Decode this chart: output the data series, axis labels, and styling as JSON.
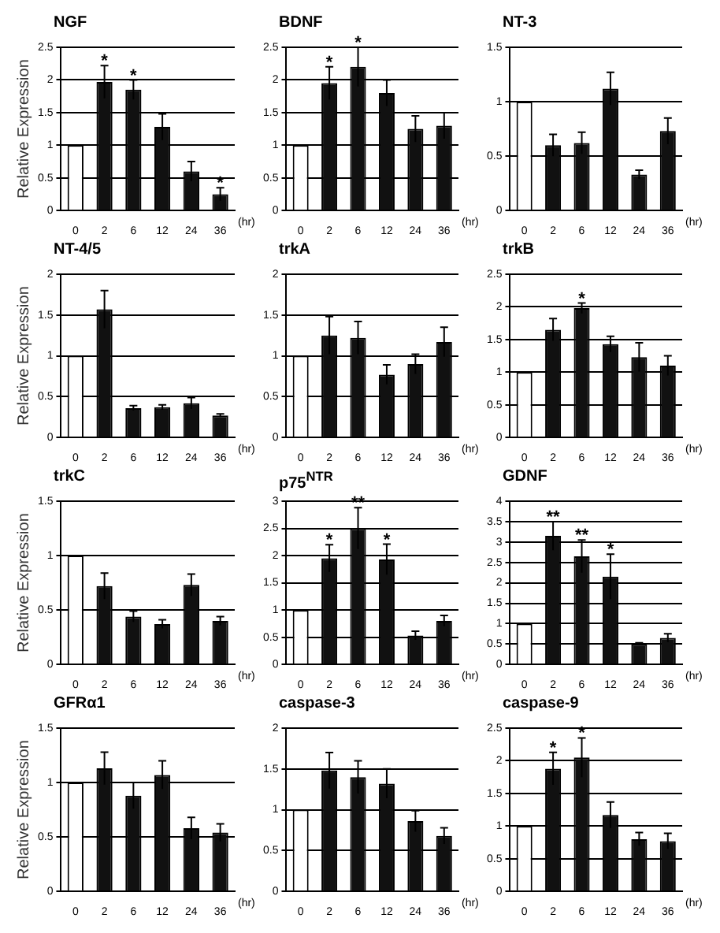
{
  "chart_data": [
    {
      "type": "bar",
      "title": "NGF",
      "ylabel": "Relative Expression",
      "xlabel": "(hr)",
      "categories": [
        "0",
        "2",
        "6",
        "12",
        "24",
        "36"
      ],
      "values": [
        1,
        1.97,
        1.85,
        1.28,
        0.6,
        0.25
      ],
      "errors": [
        null,
        0.25,
        0.15,
        0.2,
        0.15,
        0.1
      ],
      "colors": [
        "#ffffff",
        "#111111",
        "#111111",
        "#111111",
        "#111111",
        "#111111"
      ],
      "ylim": [
        0,
        2.5
      ],
      "yticks": [
        0,
        0.5,
        1,
        1.5,
        2,
        2.5
      ],
      "grid": "y",
      "annotations": [
        {
          "text": "*",
          "x": "2",
          "y": 2.22
        },
        {
          "text": "*",
          "x": "6",
          "y": 2.0
        },
        {
          "text": "*",
          "x": "36",
          "y": 0.35
        }
      ]
    },
    {
      "type": "bar",
      "title": "BDNF",
      "xlabel": "(hr)",
      "categories": [
        "0",
        "2",
        "6",
        "12",
        "24",
        "36"
      ],
      "values": [
        1,
        1.95,
        2.2,
        1.8,
        1.25,
        1.3
      ],
      "errors": [
        null,
        0.25,
        0.3,
        0.2,
        0.2,
        0.2
      ],
      "colors": [
        "#ffffff",
        "#111111",
        "#111111",
        "#111111",
        "#111111",
        "#111111"
      ],
      "ylim": [
        0,
        2.5
      ],
      "yticks": [
        0,
        0.5,
        1,
        1.5,
        2,
        2.5
      ],
      "grid": "y",
      "annotations": [
        {
          "text": "*",
          "x": "2",
          "y": 2.2
        },
        {
          "text": "*",
          "x": "6",
          "y": 2.5
        }
      ]
    },
    {
      "type": "bar",
      "title": "NT-3",
      "xlabel": "(hr)",
      "categories": [
        "0",
        "2",
        "6",
        "12",
        "24",
        "36"
      ],
      "values": [
        1,
        0.6,
        0.62,
        1.12,
        0.33,
        0.73
      ],
      "errors": [
        null,
        0.1,
        0.1,
        0.15,
        0.04,
        0.12
      ],
      "colors": [
        "#ffffff",
        "#111111",
        "#111111",
        "#111111",
        "#111111",
        "#111111"
      ],
      "ylim": [
        0,
        1.5
      ],
      "yticks": [
        0,
        0.5,
        1,
        1.5
      ],
      "grid": "y"
    },
    {
      "type": "bar",
      "title": "NT-4/5",
      "ylabel": "Relative Expression",
      "xlabel": "(hr)",
      "categories": [
        "0",
        "2",
        "6",
        "12",
        "24",
        "36"
      ],
      "values": [
        1,
        1.57,
        0.36,
        0.37,
        0.42,
        0.27
      ],
      "errors": [
        null,
        0.23,
        0.03,
        0.03,
        0.07,
        0.02
      ],
      "colors": [
        "#ffffff",
        "#111111",
        "#111111",
        "#111111",
        "#111111",
        "#111111"
      ],
      "ylim": [
        0,
        2
      ],
      "yticks": [
        0,
        0.5,
        1,
        1.5,
        2
      ],
      "grid": "y"
    },
    {
      "type": "bar",
      "title": "trkA",
      "xlabel": "(hr)",
      "categories": [
        "0",
        "2",
        "6",
        "12",
        "24",
        "36"
      ],
      "values": [
        1,
        1.25,
        1.22,
        0.77,
        0.9,
        1.17
      ],
      "errors": [
        null,
        0.23,
        0.2,
        0.12,
        0.12,
        0.18
      ],
      "colors": [
        "#ffffff",
        "#111111",
        "#111111",
        "#111111",
        "#111111",
        "#111111"
      ],
      "ylim": [
        0,
        2
      ],
      "yticks": [
        0,
        0.5,
        1,
        1.5,
        2
      ],
      "grid": "y"
    },
    {
      "type": "bar",
      "title": "trkB",
      "xlabel": "(hr)",
      "categories": [
        "0",
        "2",
        "6",
        "12",
        "24",
        "36"
      ],
      "values": [
        1,
        1.65,
        1.98,
        1.43,
        1.23,
        1.1
      ],
      "errors": [
        null,
        0.17,
        0.08,
        0.12,
        0.22,
        0.15
      ],
      "colors": [
        "#ffffff",
        "#111111",
        "#111111",
        "#111111",
        "#111111",
        "#111111"
      ],
      "ylim": [
        0,
        2.5
      ],
      "yticks": [
        0,
        0.5,
        1,
        1.5,
        2,
        2.5
      ],
      "grid": "y",
      "annotations": [
        {
          "text": "*",
          "x": "6",
          "y": 2.06
        }
      ]
    },
    {
      "type": "bar",
      "title": "trkC",
      "ylabel": "Relative Expression",
      "xlabel": "(hr)",
      "categories": [
        "0",
        "2",
        "6",
        "12",
        "24",
        "36"
      ],
      "values": [
        1,
        0.72,
        0.44,
        0.37,
        0.73,
        0.4
      ],
      "errors": [
        null,
        0.12,
        0.05,
        0.04,
        0.1,
        0.04
      ],
      "colors": [
        "#ffffff",
        "#111111",
        "#111111",
        "#111111",
        "#111111",
        "#111111"
      ],
      "ylim": [
        0,
        1.5
      ],
      "yticks": [
        0,
        0.5,
        1,
        1.5
      ],
      "grid": "y"
    },
    {
      "type": "bar",
      "title": "p75$^{NTR}$",
      "xlabel": "(hr)",
      "categories": [
        "0",
        "2",
        "6",
        "12",
        "24",
        "36"
      ],
      "values": [
        1,
        1.95,
        2.5,
        1.93,
        0.53,
        0.8
      ],
      "errors": [
        null,
        0.25,
        0.38,
        0.28,
        0.08,
        0.1
      ],
      "colors": [
        "#ffffff",
        "#111111",
        "#111111",
        "#111111",
        "#111111",
        "#111111"
      ],
      "ylim": [
        0,
        3
      ],
      "yticks": [
        0,
        0.5,
        1,
        1.5,
        2,
        2.5,
        3
      ],
      "grid": "y",
      "annotations": [
        {
          "text": "*",
          "x": "2",
          "y": 2.2
        },
        {
          "text": "**",
          "x": "6",
          "y": 2.88
        },
        {
          "text": "*",
          "x": "12",
          "y": 2.21
        }
      ]
    },
    {
      "type": "bar",
      "title": "GDNF",
      "xlabel": "(hr)",
      "categories": [
        "0",
        "2",
        "6",
        "12",
        "24",
        "36"
      ],
      "values": [
        1,
        3.15,
        2.65,
        2.15,
        0.5,
        0.65
      ],
      "errors": [
        null,
        0.35,
        0.4,
        0.55,
        0.03,
        0.1
      ],
      "colors": [
        "#ffffff",
        "#111111",
        "#111111",
        "#111111",
        "#111111",
        "#111111"
      ],
      "ylim": [
        0,
        4
      ],
      "yticks": [
        0,
        0.5,
        1,
        1.5,
        2,
        2.5,
        3,
        3.5,
        4
      ],
      "grid": "y",
      "annotations": [
        {
          "text": "**",
          "x": "2",
          "y": 3.5
        },
        {
          "text": "**",
          "x": "6",
          "y": 3.05
        },
        {
          "text": "*",
          "x": "12",
          "y": 2.7
        }
      ]
    },
    {
      "type": "bar",
      "title": "GFRα1",
      "ylabel": "Relative Expression",
      "xlabel": "(hr)",
      "categories": [
        "0",
        "2",
        "6",
        "12",
        "24",
        "36"
      ],
      "values": [
        1,
        1.13,
        0.88,
        1.07,
        0.58,
        0.54
      ],
      "errors": [
        null,
        0.15,
        0.12,
        0.13,
        0.1,
        0.08
      ],
      "colors": [
        "#ffffff",
        "#111111",
        "#111111",
        "#111111",
        "#111111",
        "#111111"
      ],
      "ylim": [
        0,
        1.5
      ],
      "yticks": [
        0,
        0.5,
        1,
        1.5
      ],
      "grid": "y"
    },
    {
      "type": "bar",
      "title": "caspase-3",
      "xlabel": "(hr)",
      "categories": [
        "0",
        "2",
        "6",
        "12",
        "24",
        "36"
      ],
      "values": [
        1,
        1.48,
        1.4,
        1.32,
        0.86,
        0.68
      ],
      "errors": [
        null,
        0.22,
        0.2,
        0.18,
        0.13,
        0.1
      ],
      "colors": [
        "#ffffff",
        "#111111",
        "#111111",
        "#111111",
        "#111111",
        "#111111"
      ],
      "ylim": [
        0,
        2
      ],
      "yticks": [
        0,
        0.5,
        1,
        1.5,
        2
      ],
      "grid": "y"
    },
    {
      "type": "bar",
      "title": "caspase-9",
      "xlabel": "(hr)",
      "categories": [
        "0",
        "2",
        "6",
        "12",
        "24",
        "36"
      ],
      "values": [
        1,
        1.88,
        2.05,
        1.17,
        0.8,
        0.77
      ],
      "errors": [
        null,
        0.25,
        0.3,
        0.2,
        0.1,
        0.12
      ],
      "colors": [
        "#ffffff",
        "#111111",
        "#111111",
        "#111111",
        "#111111",
        "#111111"
      ],
      "ylim": [
        0,
        2.5
      ],
      "yticks": [
        0,
        0.5,
        1,
        1.5,
        2,
        2.5
      ],
      "grid": "y",
      "annotations": [
        {
          "text": "*",
          "x": "2",
          "y": 2.13
        },
        {
          "text": "*",
          "x": "6",
          "y": 2.35
        }
      ]
    }
  ]
}
